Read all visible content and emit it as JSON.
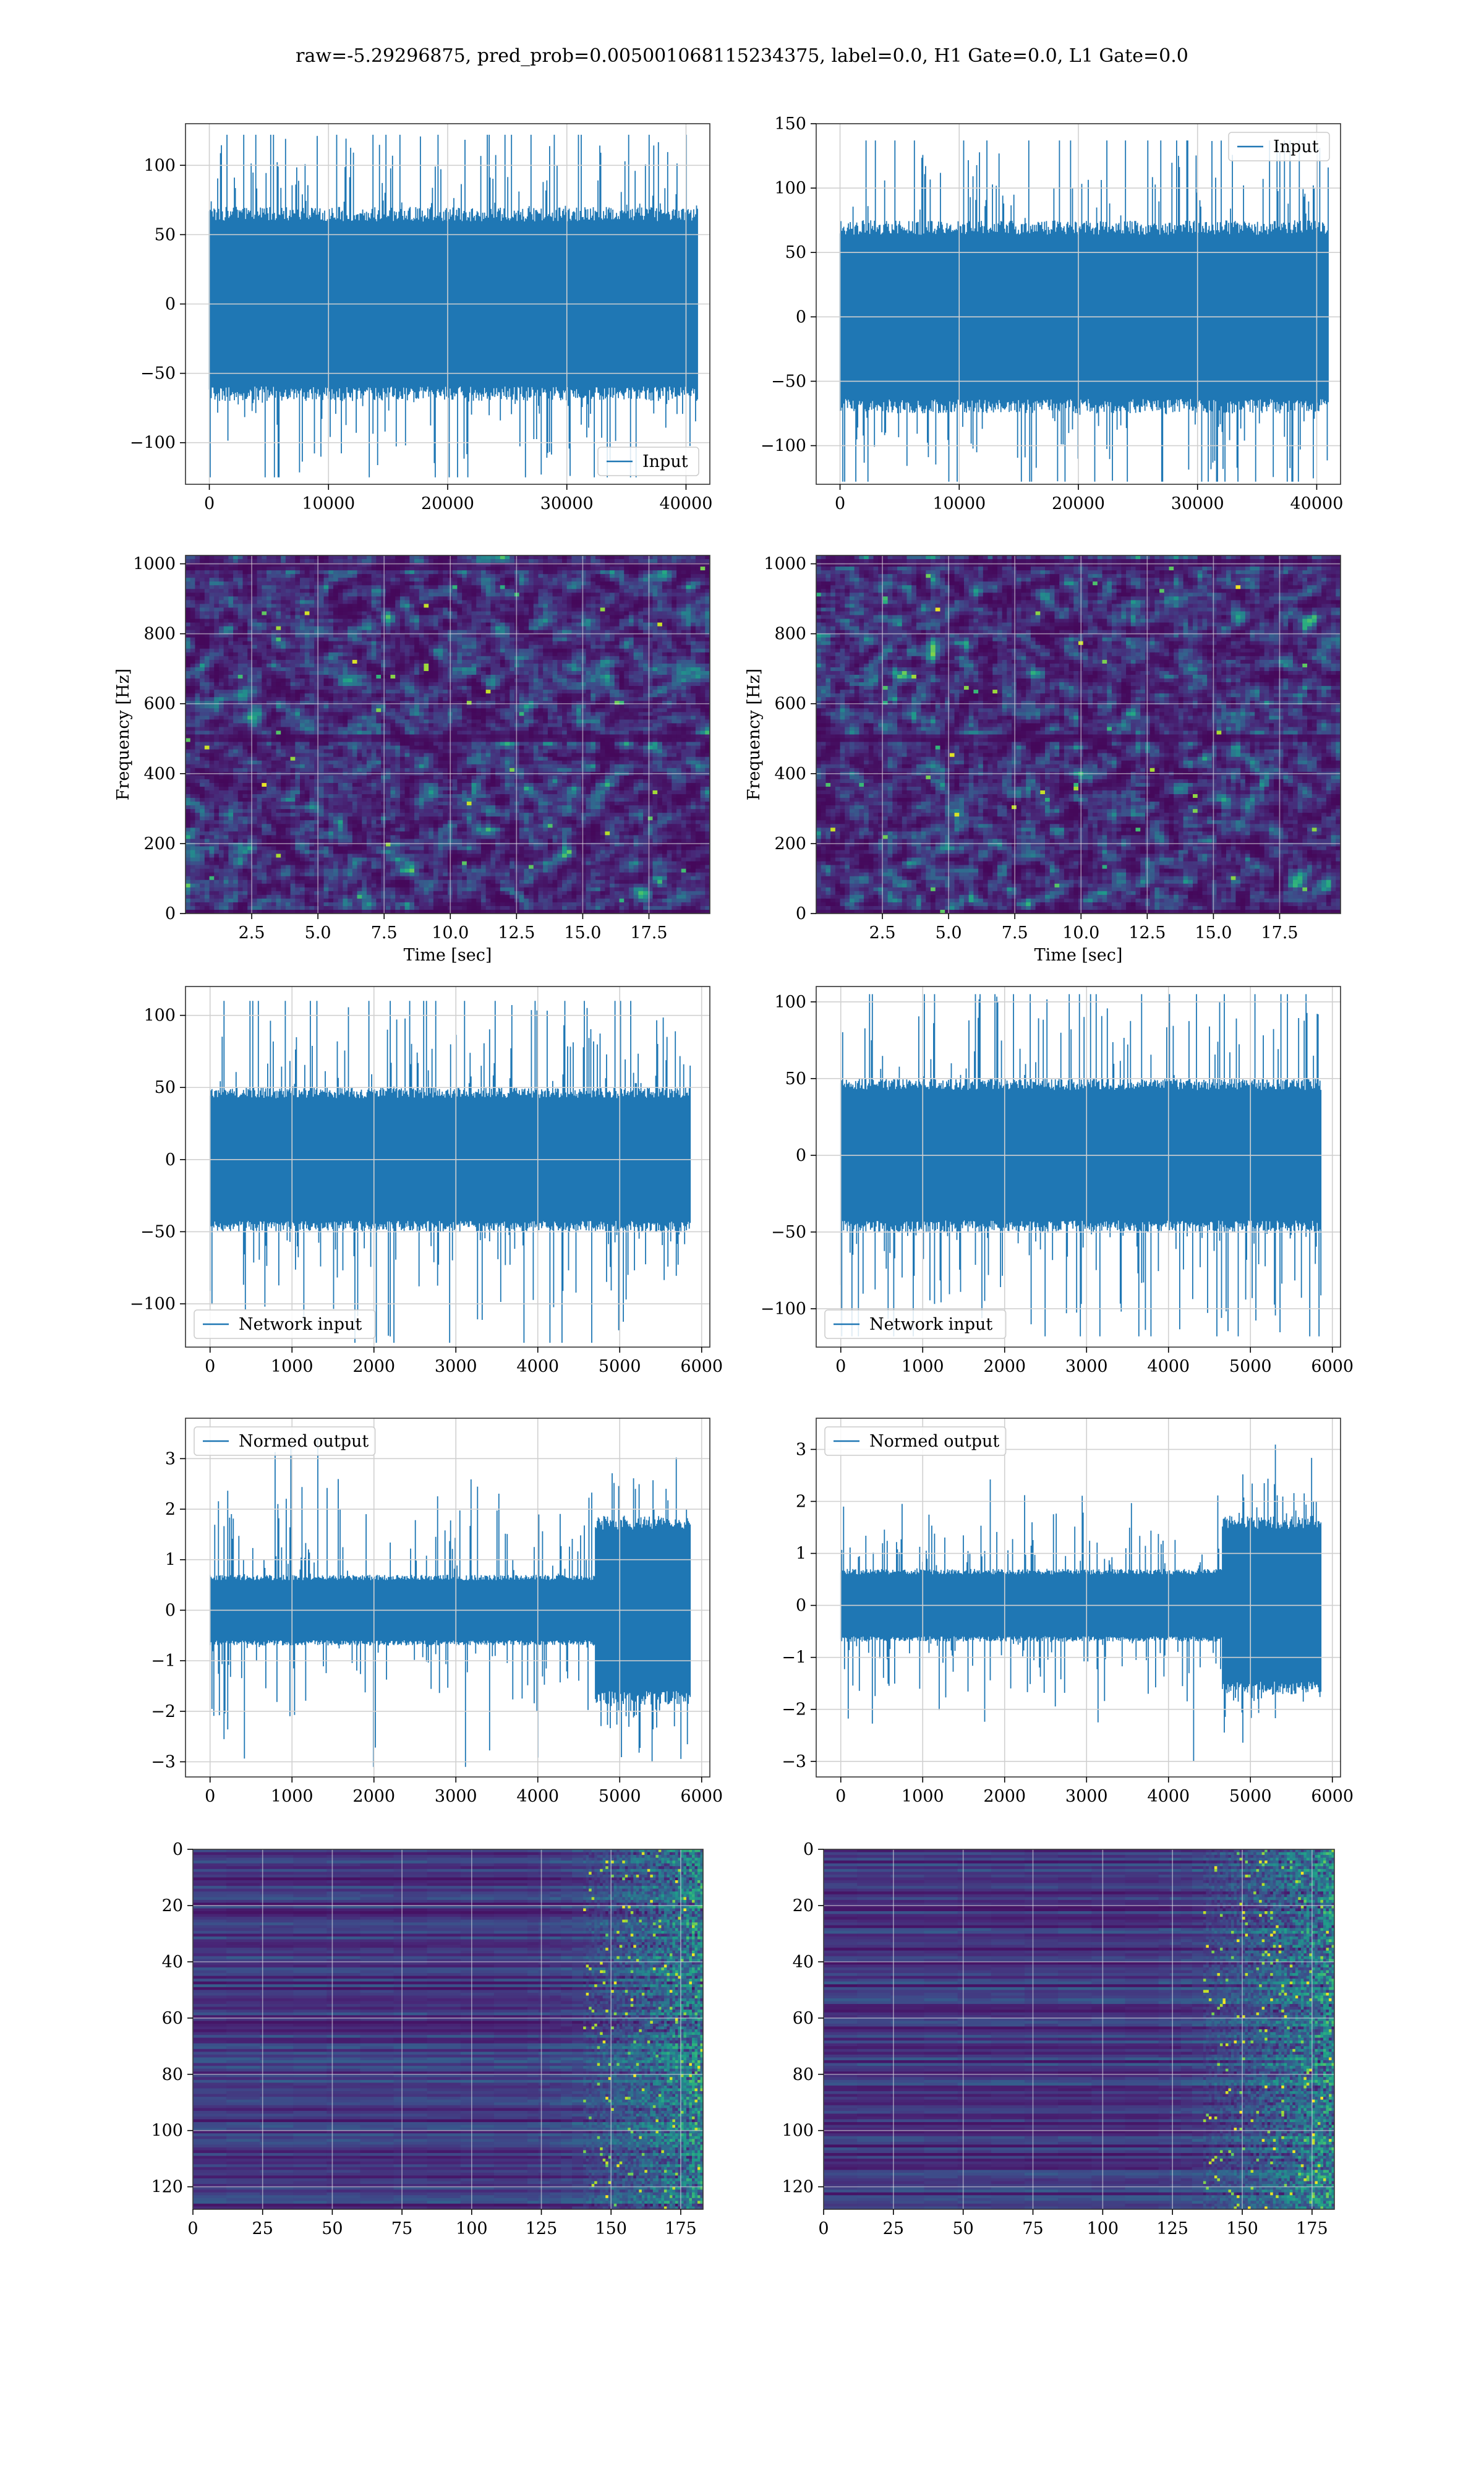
{
  "figure": {
    "suptitle": "raw=-5.29296875, pred_prob=0.005001068115234375, label=0.0, H1 Gate=0.0, L1 Gate=0.0",
    "colors": {
      "line": "#1f77b4",
      "grid": "#d0d0d0",
      "spine": "#000000"
    },
    "colormap": "viridis"
  },
  "chart_data": [
    {
      "id": "input-h1",
      "type": "line",
      "xlim": [
        -2000,
        42000
      ],
      "ylim": [
        -130,
        130
      ],
      "xticks": [
        0,
        10000,
        20000,
        30000,
        40000
      ],
      "yticks": [
        -100,
        -50,
        0,
        50,
        100
      ],
      "grid": true,
      "legend": {
        "label": "Input",
        "placement": "lower right"
      },
      "series": [
        {
          "name": "Input",
          "x_range": [
            0,
            40960
          ],
          "core_amplitude": 70,
          "peak_amplitude": 122,
          "min": -125,
          "max": 122
        }
      ]
    },
    {
      "id": "input-l1",
      "type": "line",
      "xlim": [
        -2000,
        42000
      ],
      "ylim": [
        -130,
        150
      ],
      "xticks": [
        0,
        10000,
        20000,
        30000,
        40000
      ],
      "yticks": [
        -100,
        -50,
        0,
        50,
        100,
        150
      ],
      "grid": true,
      "legend": {
        "label": "Input",
        "placement": "upper right"
      },
      "series": [
        {
          "name": "Input",
          "x_range": [
            0,
            40960
          ],
          "core_amplitude": 75,
          "peak_amplitude": 137,
          "min": -128,
          "max": 137
        }
      ]
    },
    {
      "id": "spectrogram-h1",
      "type": "heatmap",
      "xlim": [
        0,
        19.8
      ],
      "ylim": [
        0,
        1024
      ],
      "xticks": [
        2.5,
        5.0,
        7.5,
        10.0,
        12.5,
        15.0,
        17.5
      ],
      "yticks": [
        0,
        200,
        400,
        600,
        800,
        1000
      ],
      "xlabel": "Time [sec]",
      "ylabel": "Frequency [Hz]",
      "grid": true,
      "colormap": "viridis",
      "dark_bands_hz": [
        500,
        990
      ]
    },
    {
      "id": "spectrogram-l1",
      "type": "heatmap",
      "xlim": [
        0,
        19.8
      ],
      "ylim": [
        0,
        1024
      ],
      "xticks": [
        2.5,
        5.0,
        7.5,
        10.0,
        12.5,
        15.0,
        17.5
      ],
      "yticks": [
        0,
        200,
        400,
        600,
        800,
        1000
      ],
      "xlabel": "Time [sec]",
      "ylabel": "Frequency [Hz]",
      "grid": true,
      "colormap": "viridis",
      "dark_bands_hz": [
        500,
        1000
      ]
    },
    {
      "id": "network-input-h1",
      "type": "line",
      "xlim": [
        -300,
        6100
      ],
      "ylim": [
        -130,
        120
      ],
      "xticks": [
        0,
        1000,
        2000,
        3000,
        4000,
        5000,
        6000
      ],
      "yticks": [
        -100,
        -50,
        0,
        50,
        100
      ],
      "grid": true,
      "legend": {
        "label": "Network input",
        "placement": "lower left"
      },
      "series": [
        {
          "name": "Network input",
          "x_range": [
            0,
            5860
          ],
          "core_amplitude": 50,
          "peak_amplitude": 110,
          "min": -127,
          "max": 110
        }
      ]
    },
    {
      "id": "network-input-l1",
      "type": "line",
      "xlim": [
        -300,
        6100
      ],
      "ylim": [
        -125,
        110
      ],
      "xticks": [
        0,
        1000,
        2000,
        3000,
        4000,
        5000,
        6000
      ],
      "yticks": [
        -100,
        -50,
        0,
        50,
        100
      ],
      "grid": true,
      "legend": {
        "label": "Network input",
        "placement": "lower left"
      },
      "series": [
        {
          "name": "Network input",
          "x_range": [
            0,
            5860
          ],
          "core_amplitude": 50,
          "peak_amplitude": 105,
          "min": -118,
          "max": 105
        }
      ]
    },
    {
      "id": "normed-output-h1",
      "type": "line",
      "xlim": [
        -300,
        6100
      ],
      "ylim": [
        -3.3,
        3.8
      ],
      "xticks": [
        0,
        1000,
        2000,
        3000,
        4000,
        5000,
        6000
      ],
      "yticks": [
        -3,
        -2,
        -1,
        0,
        1,
        2,
        3
      ],
      "grid": true,
      "legend": {
        "label": "Normed output",
        "placement": "upper left"
      },
      "series": [
        {
          "name": "Normed output",
          "x_range": [
            0,
            5860
          ],
          "core_amplitude": 0.7,
          "peak_amplitude": 1.9,
          "burst_start": 4700,
          "burst_amplitude": 2.5,
          "min": -3.1,
          "max": 3.5
        }
      ]
    },
    {
      "id": "normed-output-l1",
      "type": "line",
      "xlim": [
        -300,
        6100
      ],
      "ylim": [
        -3.3,
        3.6
      ],
      "xticks": [
        0,
        1000,
        2000,
        3000,
        4000,
        5000,
        6000
      ],
      "yticks": [
        -3,
        -2,
        -1,
        0,
        1,
        2,
        3
      ],
      "grid": true,
      "legend": {
        "label": "Normed output",
        "placement": "upper left"
      },
      "series": [
        {
          "name": "Normed output",
          "x_range": [
            0,
            5860
          ],
          "core_amplitude": 0.7,
          "peak_amplitude": 1.6,
          "burst_start": 4650,
          "burst_amplitude": 2.3,
          "min": -3.0,
          "max": 3.3
        }
      ]
    },
    {
      "id": "feature-map-h1",
      "type": "heatmap",
      "xlim": [
        0,
        183
      ],
      "ylim": [
        128,
        0
      ],
      "xticks": [
        0,
        25,
        50,
        75,
        100,
        125,
        150,
        175
      ],
      "yticks": [
        0,
        20,
        40,
        60,
        80,
        100,
        120
      ],
      "grid": true,
      "colormap": "viridis",
      "active_from_x": 140
    },
    {
      "id": "feature-map-l1",
      "type": "heatmap",
      "xlim": [
        0,
        183
      ],
      "ylim": [
        128,
        0
      ],
      "xticks": [
        0,
        25,
        50,
        75,
        100,
        125,
        150,
        175
      ],
      "yticks": [
        0,
        20,
        40,
        60,
        80,
        100,
        120
      ],
      "grid": true,
      "colormap": "viridis",
      "active_from_x": 135
    }
  ]
}
